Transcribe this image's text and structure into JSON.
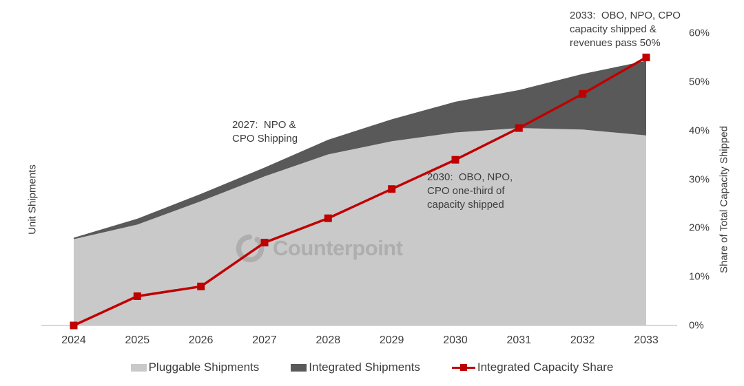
{
  "watermark": {
    "text": "Counterpoint"
  },
  "axes": {
    "left_label": "Unit Shipments",
    "right_label": "Share of Total Capacity Shipped",
    "x_labels": [
      "2024",
      "2025",
      "2026",
      "2027",
      "2028",
      "2029",
      "2030",
      "2031",
      "2032",
      "2033"
    ],
    "right_ticks": [
      {
        "label": "0%",
        "value": 0
      },
      {
        "label": "10%",
        "value": 10
      },
      {
        "label": "20%",
        "value": 20
      },
      {
        "label": "30%",
        "value": 30
      },
      {
        "label": "40%",
        "value": 40
      },
      {
        "label": "50%",
        "value": 50
      },
      {
        "label": "60%",
        "value": 60
      }
    ]
  },
  "annotations": [
    {
      "text": "2027:  NPO &\nCPO Shipping"
    },
    {
      "text": "2030:  OBO, NPO,\nCPO one-third of\ncapacity shipped"
    },
    {
      "text": "2033:  OBO, NPO, CPO\ncapacity shipped &\nrevenues pass 50%"
    }
  ],
  "legend": {
    "items": [
      {
        "label": "Pluggable Shipments",
        "type": "area",
        "color": "#C9C9C9"
      },
      {
        "label": "Integrated Shipments",
        "type": "area",
        "color": "#595959"
      },
      {
        "label": "Integrated Capacity Share",
        "type": "line",
        "color": "#C00000"
      }
    ]
  },
  "colors": {
    "pluggable": "#C9C9C9",
    "integrated": "#595959",
    "capacity_line": "#C00000",
    "axis_line": "#D9D9D9",
    "text": "#3d3d3d",
    "watermark": "#AEAEAE"
  },
  "chart_data": {
    "type": "area",
    "subtype": "stacked-area-with-secondary-line",
    "categories": [
      "2024",
      "2025",
      "2026",
      "2027",
      "2028",
      "2029",
      "2030",
      "2031",
      "2032",
      "2033"
    ],
    "series": [
      {
        "name": "Pluggable Shipments",
        "type": "area",
        "axis": "left",
        "values": [
          29.5,
          34.5,
          42.5,
          51,
          58.5,
          63,
          66,
          67.5,
          67,
          65
        ]
      },
      {
        "name": "Integrated Shipments",
        "type": "area",
        "axis": "left",
        "stacked": true,
        "values": [
          0.5,
          2,
          2.5,
          3,
          5,
          7.5,
          10.5,
          13,
          19,
          25.5
        ]
      },
      {
        "name": "Integrated Capacity Share",
        "type": "line",
        "axis": "right",
        "unit": "%",
        "values": [
          0,
          6,
          8,
          17,
          22,
          28,
          34,
          40.5,
          47.5,
          55
        ]
      }
    ],
    "left_axis": {
      "label": "Unit Shipments",
      "range": [
        0,
        100
      ],
      "note": "no tick labels shown; values are relative index estimated from pixel heights"
    },
    "right_axis": {
      "label": "Share of Total Capacity Shipped",
      "unit": "%",
      "range": [
        0,
        60
      ],
      "tick_step": 10
    },
    "legend_position": "bottom",
    "grid": false,
    "annotations": [
      "2027:  NPO & CPO Shipping",
      "2030:  OBO, NPO, CPO one-third of capacity shipped",
      "2033:  OBO, NPO, CPO capacity shipped & revenues pass 50%"
    ]
  }
}
